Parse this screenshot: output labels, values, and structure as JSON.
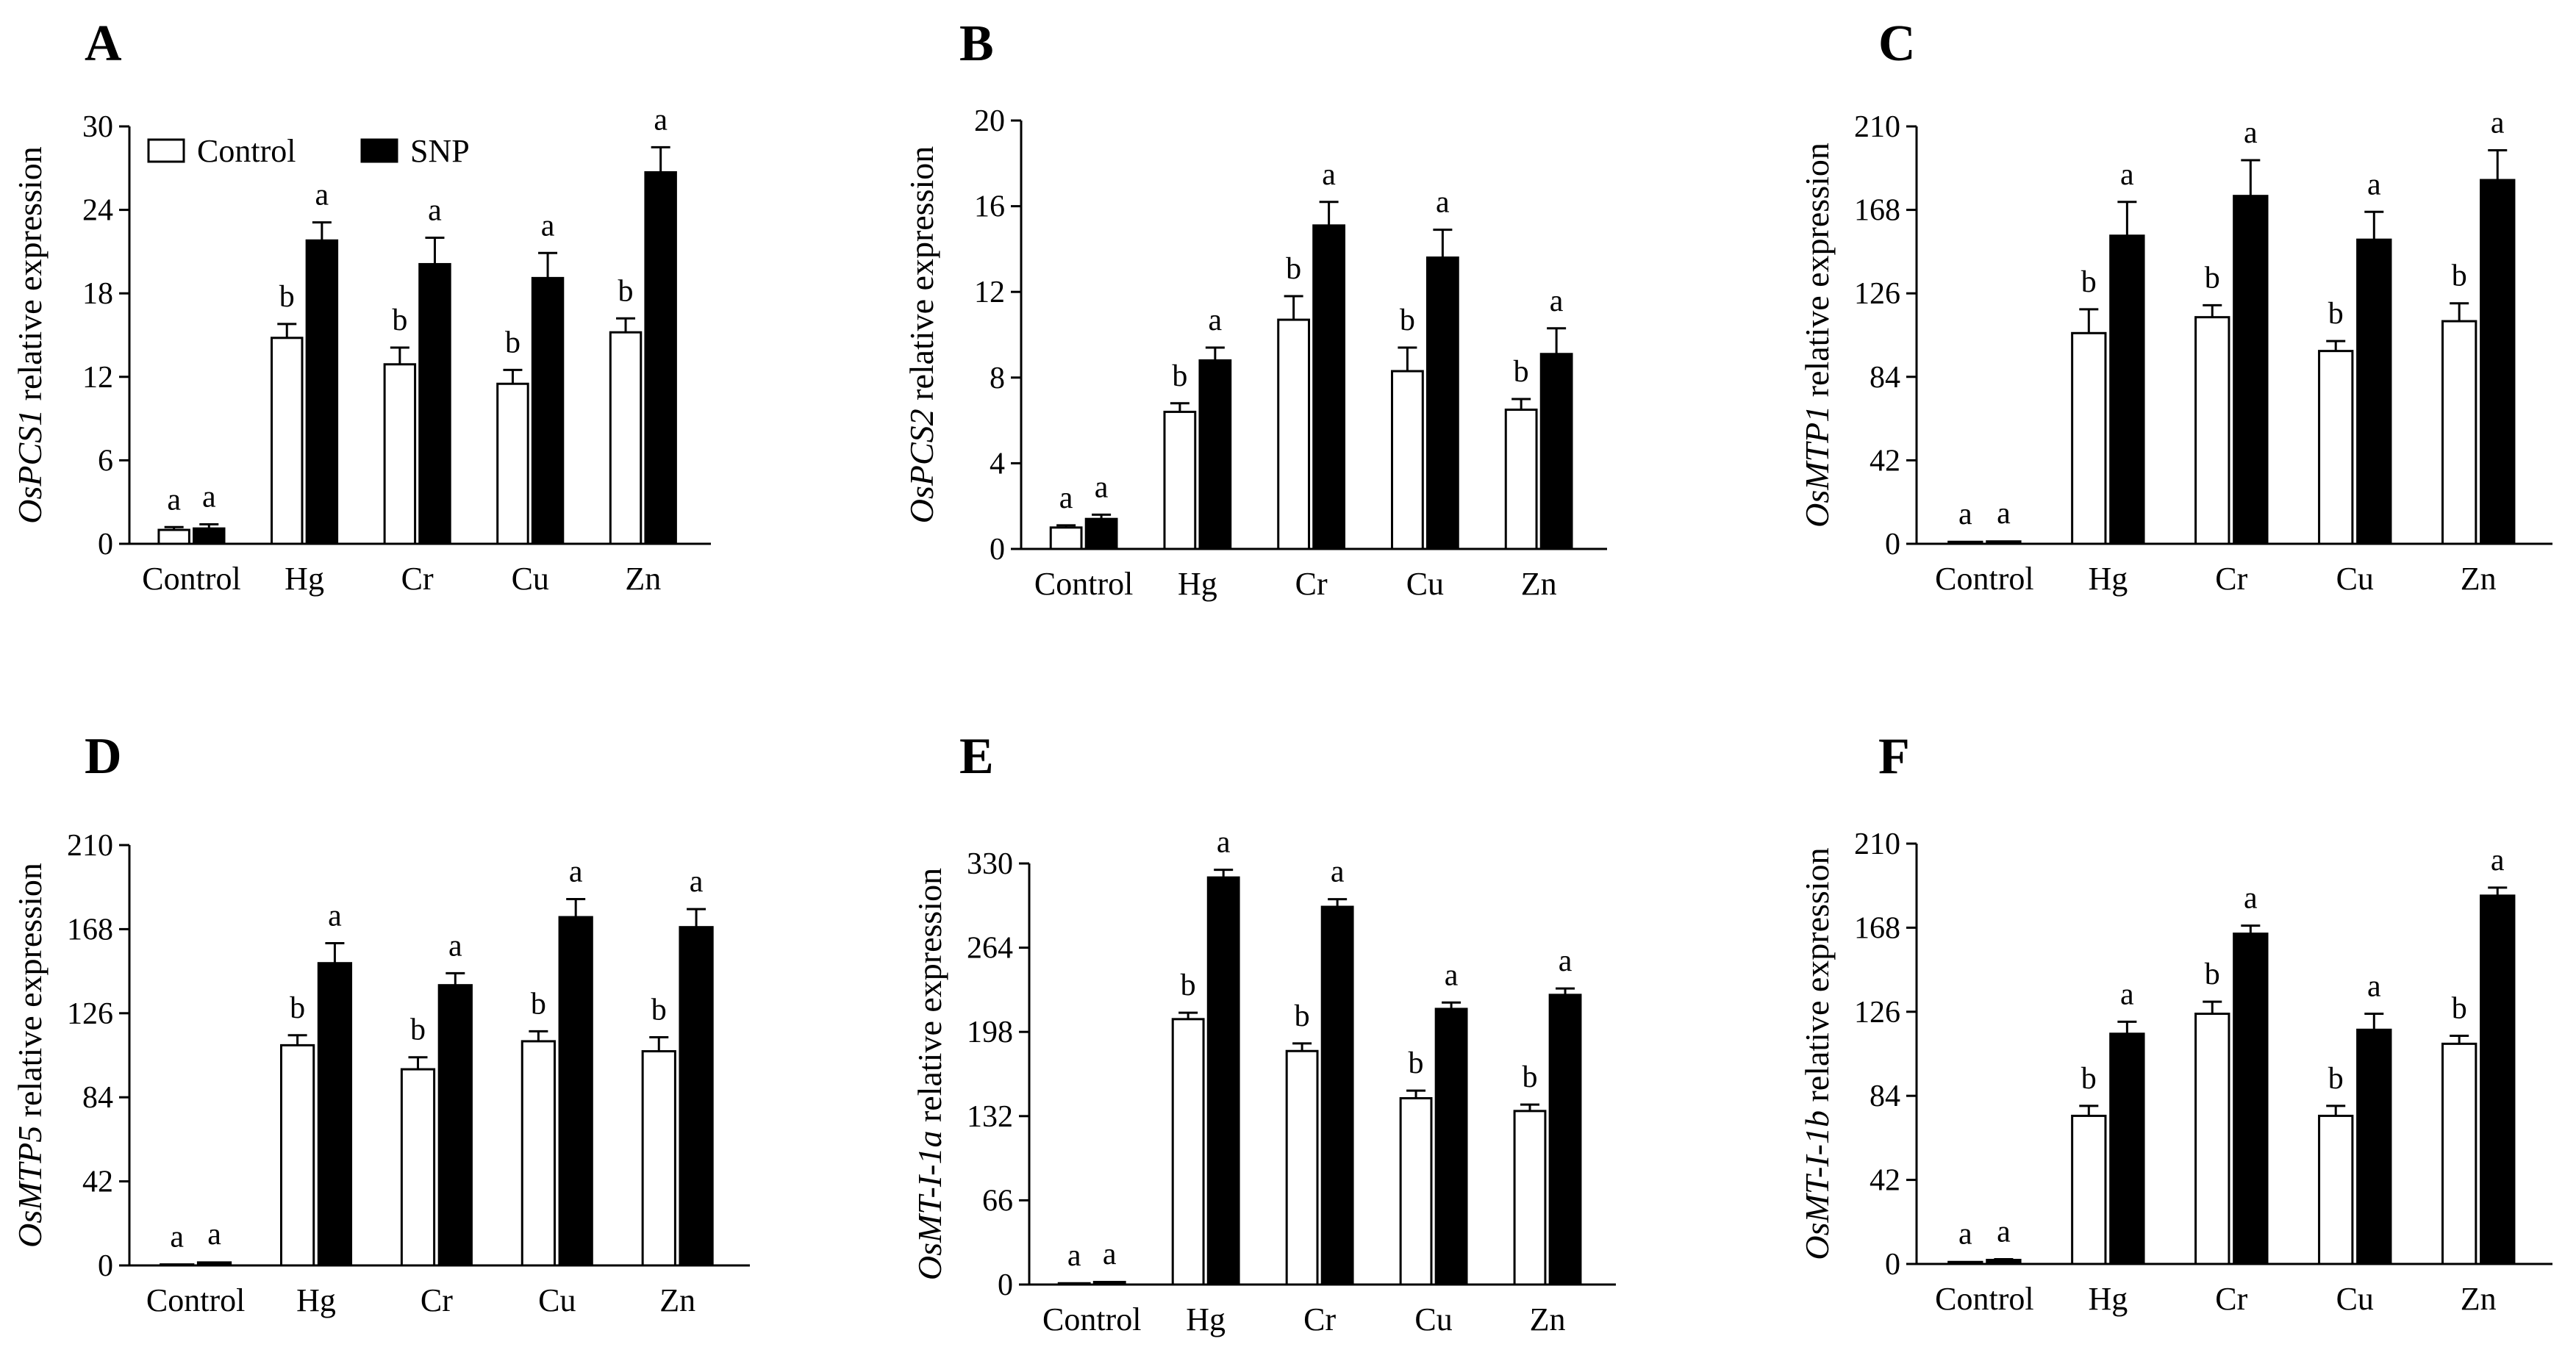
{
  "figure": {
    "legend": {
      "control_label": "Control",
      "snp_label": "SNP"
    },
    "colors": {
      "control_fill": "#ffffff",
      "snp_fill": "#000000",
      "axis": "#000000"
    }
  },
  "chart_data": [
    {
      "type": "bar",
      "panel": "A",
      "gene": "OsPCS1",
      "ylabel_suffix": " relative expression",
      "categories": [
        "Control",
        "Hg",
        "Cr",
        "Cu",
        "Zn"
      ],
      "yticks": [
        0,
        6,
        12,
        18,
        24,
        30
      ],
      "ylim": [
        0,
        30
      ],
      "series": [
        {
          "name": "Control",
          "values": [
            1.0,
            14.8,
            12.9,
            11.5,
            15.2
          ],
          "errors": [
            0.2,
            1.0,
            1.2,
            1.0,
            1.0
          ],
          "labels": [
            "a",
            "b",
            "b",
            "b",
            "b"
          ]
        },
        {
          "name": "SNP",
          "values": [
            1.1,
            21.8,
            20.1,
            19.1,
            26.7
          ],
          "errors": [
            0.3,
            1.3,
            1.9,
            1.8,
            1.8
          ],
          "labels": [
            "a",
            "a",
            "a",
            "a",
            "a"
          ]
        }
      ],
      "legend": true
    },
    {
      "type": "bar",
      "panel": "B",
      "gene": "OsPCS2",
      "ylabel_suffix": " relative expression",
      "categories": [
        "Control",
        "Hg",
        "Cr",
        "Cu",
        "Zn"
      ],
      "yticks": [
        0,
        4,
        8,
        12,
        16,
        20
      ],
      "ylim": [
        0,
        20
      ],
      "series": [
        {
          "name": "Control",
          "values": [
            1.0,
            6.4,
            10.7,
            8.3,
            6.5
          ],
          "errors": [
            0.1,
            0.4,
            1.1,
            1.1,
            0.5
          ],
          "labels": [
            "a",
            "b",
            "b",
            "b",
            "b"
          ]
        },
        {
          "name": "SNP",
          "values": [
            1.4,
            8.8,
            15.1,
            13.6,
            9.1
          ],
          "errors": [
            0.2,
            0.6,
            1.1,
            1.3,
            1.2
          ],
          "labels": [
            "a",
            "a",
            "a",
            "a",
            "a"
          ]
        }
      ]
    },
    {
      "type": "bar",
      "panel": "C",
      "gene": "OsMTP1",
      "ylabel_suffix": " relative expression",
      "categories": [
        "Control",
        "Hg",
        "Cr",
        "Cu",
        "Zn"
      ],
      "yticks": [
        0,
        42,
        84,
        126,
        168,
        210
      ],
      "ylim": [
        0,
        210
      ],
      "series": [
        {
          "name": "Control",
          "values": [
            1.0,
            106,
            114,
            97,
            112
          ],
          "errors": [
            0.2,
            12,
            6,
            5,
            9
          ],
          "labels": [
            "a",
            "b",
            "b",
            "b",
            "b"
          ]
        },
        {
          "name": "SNP",
          "values": [
            1.2,
            155,
            175,
            153,
            183
          ],
          "errors": [
            0.3,
            17,
            18,
            14,
            15
          ],
          "labels": [
            "a",
            "a",
            "a",
            "a",
            "a"
          ]
        }
      ]
    },
    {
      "type": "bar",
      "panel": "D",
      "gene": "OsMTP5",
      "ylabel_suffix": " relative expression",
      "categories": [
        "Control",
        "Hg",
        "Cr",
        "Cu",
        "Zn"
      ],
      "yticks": [
        0,
        42,
        84,
        126,
        168,
        210
      ],
      "ylim": [
        0,
        210
      ],
      "series": [
        {
          "name": "Control",
          "values": [
            0.5,
            110,
            98,
            112,
            107
          ],
          "errors": [
            0.1,
            5,
            6,
            5,
            7
          ],
          "labels": [
            "a",
            "b",
            "b",
            "b",
            "b"
          ]
        },
        {
          "name": "SNP",
          "values": [
            1.5,
            151,
            140,
            174,
            169
          ],
          "errors": [
            0.3,
            10,
            6,
            9,
            9
          ],
          "labels": [
            "a",
            "a",
            "a",
            "a",
            "a"
          ]
        }
      ]
    },
    {
      "type": "bar",
      "panel": "E",
      "gene": "OsMT-I-1a",
      "ylabel_suffix": " relative expression",
      "categories": [
        "Control",
        "Hg",
        "Cr",
        "Cu",
        "Zn"
      ],
      "yticks": [
        0,
        66,
        132,
        198,
        264,
        330
      ],
      "ylim": [
        0,
        330
      ],
      "series": [
        {
          "name": "Control",
          "values": [
            1.0,
            208,
            183,
            146,
            136
          ],
          "errors": [
            0.2,
            5,
            6,
            6,
            5
          ],
          "labels": [
            "a",
            "b",
            "b",
            "b",
            "b"
          ]
        },
        {
          "name": "SNP",
          "values": [
            2.0,
            319,
            296,
            216,
            227
          ],
          "errors": [
            0.4,
            6,
            6,
            5,
            5
          ],
          "labels": [
            "a",
            "a",
            "a",
            "a",
            "a"
          ]
        }
      ]
    },
    {
      "type": "bar",
      "panel": "F",
      "gene": "OsMT-I-1b",
      "ylabel_suffix": " relative expression",
      "categories": [
        "Control",
        "Hg",
        "Cr",
        "Cu",
        "Zn"
      ],
      "yticks": [
        0,
        42,
        84,
        126,
        168,
        210
      ],
      "ylim": [
        0,
        210
      ],
      "series": [
        {
          "name": "Control",
          "values": [
            1.0,
            74,
            125,
            74,
            110
          ],
          "errors": [
            0.2,
            5,
            6,
            5,
            4
          ],
          "labels": [
            "a",
            "b",
            "b",
            "b",
            "b"
          ]
        },
        {
          "name": "SNP",
          "values": [
            2.0,
            115,
            165,
            117,
            184
          ],
          "errors": [
            0.4,
            6,
            4,
            8,
            4
          ],
          "labels": [
            "a",
            "a",
            "a",
            "a",
            "a"
          ]
        }
      ]
    }
  ]
}
